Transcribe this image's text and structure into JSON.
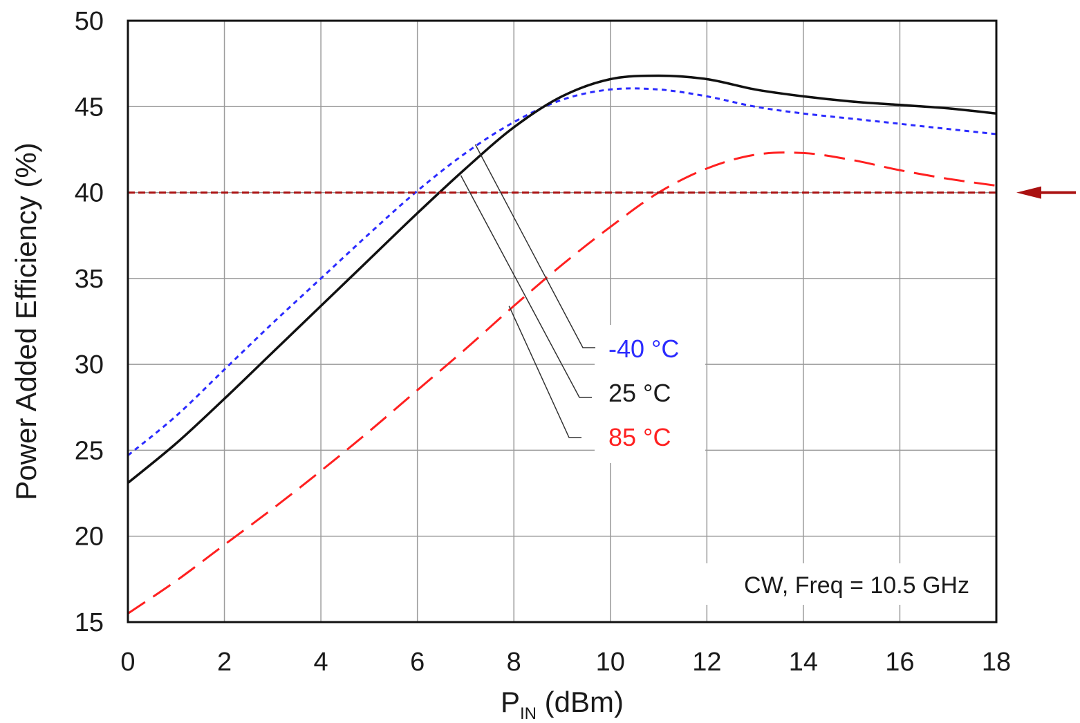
{
  "chart_data": {
    "type": "line",
    "title": "",
    "xlabel": {
      "main": "P",
      "sub": "IN",
      "unit": " (dBm)"
    },
    "ylabel": "Power Added Efficiency (%)",
    "xlim": [
      0,
      18
    ],
    "ylim": [
      15,
      50
    ],
    "x_ticks": [
      0,
      2,
      4,
      6,
      8,
      10,
      12,
      14,
      16,
      18
    ],
    "y_ticks": [
      15,
      20,
      25,
      30,
      35,
      40,
      45,
      50
    ],
    "grid": true,
    "annotation": "CW, Freq = 10.5 GHz",
    "reference_line": {
      "y": 40,
      "color": "#aa1111",
      "style": "dashed",
      "arrow": true
    },
    "series": [
      {
        "name": "-40 °C",
        "color": "#2b2bff",
        "dash": "short",
        "x": [
          0,
          1,
          2,
          3,
          4,
          5,
          6,
          7,
          8,
          9,
          10,
          11,
          12,
          13,
          14,
          15,
          16,
          17,
          18
        ],
        "y": [
          24.7,
          27.0,
          29.7,
          32.4,
          35.0,
          37.6,
          40.1,
          42.3,
          44.1,
          45.4,
          46.0,
          46.0,
          45.6,
          45.0,
          44.6,
          44.3,
          44.0,
          43.7,
          43.4
        ]
      },
      {
        "name": "25 °C",
        "color": "#111111",
        "dash": "solid",
        "x": [
          0,
          1,
          2,
          3,
          4,
          5,
          6,
          7,
          8,
          9,
          10,
          11,
          12,
          13,
          14,
          15,
          16,
          17,
          18
        ],
        "y": [
          23.1,
          25.4,
          28.0,
          30.7,
          33.4,
          36.1,
          38.8,
          41.4,
          43.8,
          45.6,
          46.6,
          46.8,
          46.6,
          46.0,
          45.6,
          45.3,
          45.1,
          44.9,
          44.6
        ]
      },
      {
        "name": "85 °C",
        "color": "#ff2020",
        "dash": "long",
        "x": [
          0,
          1,
          2,
          3,
          4,
          5,
          6,
          7,
          8,
          9,
          10,
          11,
          12,
          13,
          14,
          15,
          16,
          17,
          18
        ],
        "y": [
          15.5,
          17.4,
          19.5,
          21.6,
          23.8,
          26.1,
          28.5,
          30.9,
          33.4,
          35.8,
          38.0,
          40.0,
          41.4,
          42.2,
          42.3,
          41.9,
          41.3,
          40.8,
          40.4
        ]
      }
    ],
    "legend": {
      "placement": "center-right, with leader lines",
      "entries": [
        "-40 °C",
        "25 °C",
        "85 °C"
      ]
    }
  }
}
